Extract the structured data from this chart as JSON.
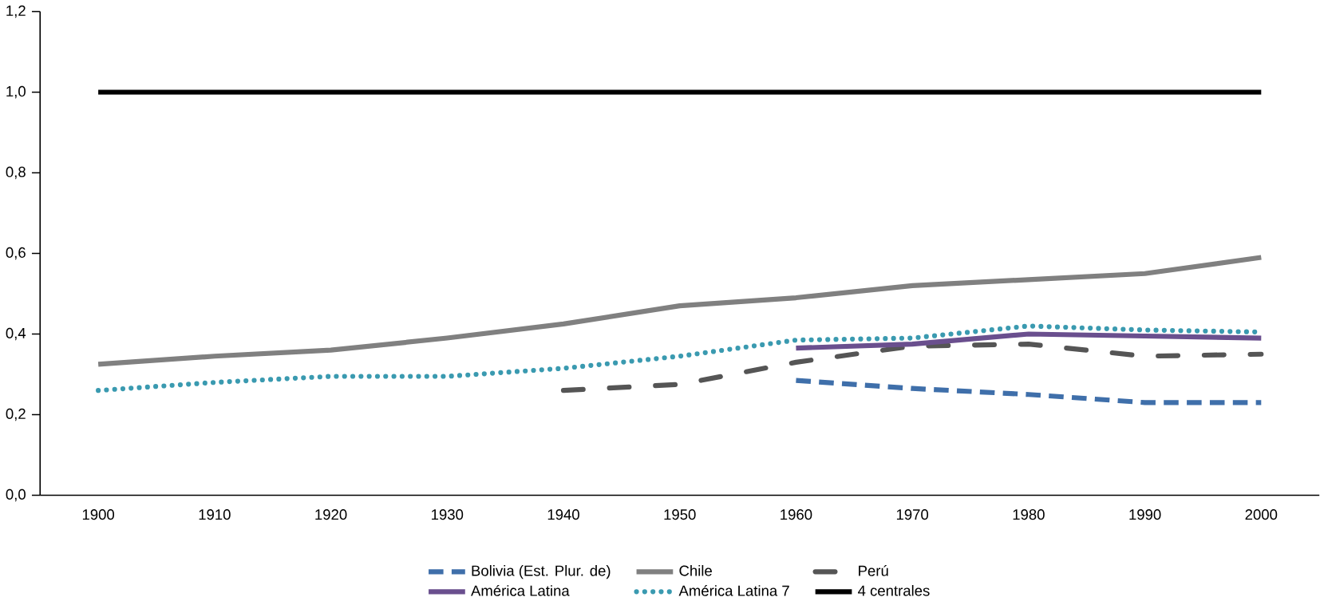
{
  "chart_data": {
    "type": "line",
    "categories": [
      "1900",
      "1910",
      "1920",
      "1930",
      "1940",
      "1950",
      "1960",
      "1970",
      "1980",
      "1990",
      "2000"
    ],
    "ylim": [
      0,
      1.2
    ],
    "yticks": [
      {
        "value": 0,
        "label": "0,0"
      },
      {
        "value": 0.2,
        "label": "0,2"
      },
      {
        "value": 0.4,
        "label": "0,4"
      },
      {
        "value": 0.6,
        "label": "0,6"
      },
      {
        "value": 0.8,
        "label": "0,8"
      },
      {
        "value": 1.0,
        "label": "1,0"
      },
      {
        "value": 1.2,
        "label": "1,2"
      }
    ],
    "grid": false,
    "legend": "bottom",
    "marker": "none",
    "series": [
      {
        "name": "Bolivia (Est. Plur. de)",
        "color": "#3f6faa",
        "line_style": "dashed",
        "values": [
          null,
          null,
          null,
          null,
          null,
          null,
          0.285,
          0.265,
          0.25,
          0.23,
          0.23
        ]
      },
      {
        "name": "Chile",
        "color": "#808080",
        "line_style": "solid",
        "values": [
          0.325,
          0.345,
          0.36,
          0.39,
          0.425,
          0.47,
          0.49,
          0.52,
          0.535,
          0.55,
          0.59
        ]
      },
      {
        "name": "Perú",
        "color": "#555555",
        "line_style": "dashdot",
        "values": [
          null,
          null,
          null,
          null,
          0.26,
          0.275,
          0.33,
          0.37,
          0.375,
          0.345,
          0.35
        ]
      },
      {
        "name": "América Latina",
        "color": "#6a4f8e",
        "line_style": "solid",
        "values": [
          null,
          null,
          null,
          null,
          null,
          null,
          0.365,
          0.375,
          0.4,
          0.395,
          0.39
        ]
      },
      {
        "name": "América Latina 7",
        "color": "#3a9ab0",
        "line_style": "dotted",
        "values": [
          0.26,
          0.28,
          0.295,
          0.295,
          0.315,
          0.345,
          0.385,
          0.39,
          0.42,
          0.41,
          0.405
        ]
      },
      {
        "name": "4 centrales",
        "color": "#000000",
        "line_style": "solid",
        "values": [
          1,
          1,
          1,
          1,
          1,
          1,
          1,
          1,
          1,
          1,
          1
        ]
      }
    ]
  }
}
